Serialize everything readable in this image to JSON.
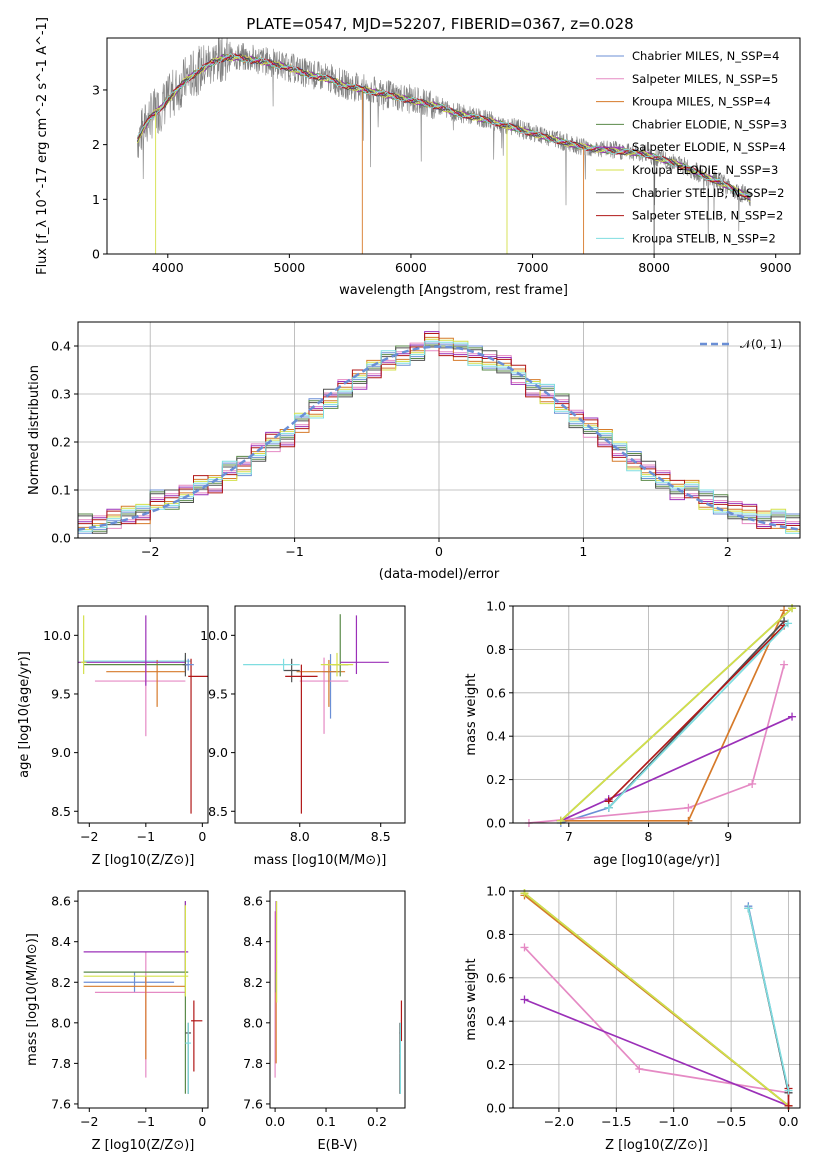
{
  "figure_title": "PLATE=0547, MJD=52207, FIBERID=0367, z=0.028",
  "colors": [
    "#6b8fd6",
    "#e58ac4",
    "#d67a2a",
    "#5a8a48",
    "#9b30b8",
    "#d4e04a",
    "#505050",
    "#b01818",
    "#7fdde0"
  ],
  "chart_data": [
    {
      "type": "line",
      "title": "PLATE=0547, MJD=52207, FIBERID=0367, z=0.028",
      "xlabel": "wavelength [Angstrom, rest frame]",
      "ylabel": "Flux [f_λ 10^-17 erg cm^-2 s^-1 A^-1]",
      "xlim": [
        3500,
        9200
      ],
      "ylim": [
        0,
        3.95
      ],
      "xticks": [
        "4000",
        "5000",
        "6000",
        "7000",
        "8000",
        "9000"
      ],
      "yticks": [
        "0",
        "1",
        "2",
        "3"
      ],
      "grid": false,
      "legend_position": "top-right",
      "data_continuum": {
        "x": [
          3750,
          3850,
          3950,
          4050,
          4150,
          4250,
          4350,
          4450,
          4550,
          4650,
          4750,
          4850,
          4950,
          5050,
          5150,
          5250,
          5350,
          5450,
          5550,
          5650,
          5750,
          5850,
          5950,
          6050,
          6150,
          6250,
          6350,
          6450,
          6550,
          6650,
          6750,
          6850,
          6950,
          7050,
          7150,
          7250,
          7350,
          7450,
          7550,
          7650,
          7750,
          7850,
          7950,
          8050,
          8150,
          8250,
          8350,
          8450,
          8550,
          8650,
          8750,
          8800
        ],
        "y": [
          2.1,
          2.5,
          2.7,
          2.95,
          3.2,
          3.35,
          3.5,
          3.6,
          3.62,
          3.58,
          3.55,
          3.5,
          3.45,
          3.38,
          3.3,
          3.25,
          3.2,
          3.1,
          3.05,
          3.0,
          2.95,
          2.9,
          2.85,
          2.8,
          2.75,
          2.7,
          2.6,
          2.55,
          2.5,
          2.45,
          2.38,
          2.32,
          2.25,
          2.18,
          2.12,
          2.06,
          2.0,
          1.96,
          1.92,
          1.9,
          1.88,
          1.86,
          1.82,
          1.75,
          1.68,
          1.6,
          1.5,
          1.4,
          1.3,
          1.2,
          1.08,
          1.0
        ]
      },
      "series_names": [
        "Chabrier MILES, N_SSP=4",
        "Salpeter MILES, N_SSP=5",
        "Kroupa MILES, N_SSP=4",
        "Chabrier ELODIE, N_SSP=3",
        "Salpeter ELODIE, N_SSP=4",
        "Kroupa ELODIE, N_SSP=3",
        "Chabrier STELIB, N_SSP=2",
        "Salpeter STELIB, N_SSP=2",
        "Kroupa STELIB, N_SSP=2"
      ]
    },
    {
      "type": "line",
      "xlabel": "(data-model)/error",
      "ylabel": "Normed distribution",
      "xlim": [
        -2.5,
        2.5
      ],
      "ylim": [
        0,
        0.45
      ],
      "xticks": [
        "−2",
        "−1",
        "0",
        "1",
        "2"
      ],
      "yticks": [
        "0.0",
        "0.1",
        "0.2",
        "0.3",
        "0.4"
      ],
      "grid": true,
      "legend_position": "top-right",
      "gaussian_label": "𝒩(0, 1)",
      "bin_edges": [
        -2.5,
        -2.4,
        -2.3,
        -2.2,
        -2.1,
        -2.0,
        -1.9,
        -1.8,
        -1.7,
        -1.6,
        -1.5,
        -1.4,
        -1.3,
        -1.2,
        -1.1,
        -1.0,
        -0.9,
        -0.8,
        -0.7,
        -0.6,
        -0.5,
        -0.4,
        -0.3,
        -0.2,
        -0.1,
        0.0,
        0.1,
        0.2,
        0.3,
        0.4,
        0.5,
        0.6,
        0.7,
        0.8,
        0.9,
        1.0,
        1.1,
        1.2,
        1.3,
        1.4,
        1.5,
        1.6,
        1.7,
        1.8,
        1.9,
        2.0,
        2.1,
        2.2,
        2.3,
        2.4,
        2.5
      ],
      "hist_values": [
        0.03,
        0.03,
        0.04,
        0.05,
        0.05,
        0.08,
        0.08,
        0.09,
        0.11,
        0.11,
        0.14,
        0.15,
        0.18,
        0.2,
        0.21,
        0.24,
        0.27,
        0.29,
        0.31,
        0.33,
        0.35,
        0.37,
        0.38,
        0.39,
        0.41,
        0.4,
        0.39,
        0.38,
        0.37,
        0.36,
        0.34,
        0.31,
        0.3,
        0.28,
        0.25,
        0.23,
        0.21,
        0.18,
        0.16,
        0.14,
        0.12,
        0.1,
        0.1,
        0.08,
        0.07,
        0.06,
        0.05,
        0.04,
        0.04,
        0.03
      ]
    },
    {
      "type": "scatter",
      "xlabel": "Z [log10(Z/Z⊙)]",
      "ylabel": "age [log10(age/yr)]",
      "xlim": [
        -2.2,
        0.1
      ],
      "ylim": [
        8.4,
        10.25
      ],
      "xticks": [
        "−2",
        "−1",
        "0"
      ],
      "yticks": [
        "8.5",
        "9.0",
        "9.5",
        "10.0"
      ],
      "crosses": [
        {
          "x": -0.3,
          "xerr": [
            1.8,
            0.1
          ],
          "y": 9.78,
          "yerr": [
            0.08,
            0.05
          ],
          "s": 8
        },
        {
          "x": -1.0,
          "xerr": [
            0.9,
            0.7
          ],
          "y": 9.61,
          "yerr": [
            0.47,
            0.17
          ],
          "s": 1
        },
        {
          "x": -0.8,
          "xerr": [
            0.9,
            0.5
          ],
          "y": 9.69,
          "yerr": [
            0.3,
            0.1
          ],
          "s": 2
        },
        {
          "x": -0.3,
          "xerr": [
            1.8,
            0.05
          ],
          "y": 9.75,
          "yerr": [
            0.05,
            0.05
          ],
          "s": 3
        },
        {
          "x": -1.0,
          "xerr": [
            1.2,
            0.7
          ],
          "y": 9.77,
          "yerr": [
            0.2,
            0.4
          ],
          "s": 4
        },
        {
          "x": -2.1,
          "xerr": [
            0.05,
            0.05
          ],
          "y": 9.77,
          "yerr": [
            0.1,
            0.4
          ],
          "s": 5
        },
        {
          "x": -0.3,
          "xerr": [
            0.05,
            0.05
          ],
          "y": 9.75,
          "yerr": [
            0.1,
            0.1
          ],
          "s": 6
        },
        {
          "x": -0.2,
          "xerr": [
            0.05,
            0.3
          ],
          "y": 9.65,
          "yerr": [
            1.17,
            0.15
          ],
          "s": 7
        },
        {
          "x": -0.25,
          "xerr": [
            0.05,
            0.1
          ],
          "y": 9.75,
          "yerr": [
            0.05,
            0.05
          ],
          "s": 0
        }
      ]
    },
    {
      "type": "scatter",
      "xlabel": "mass [log10(M/M⊙)]",
      "ylabel": "",
      "xlim": [
        7.6,
        8.65
      ],
      "ylim": [
        8.4,
        10.25
      ],
      "xticks": [
        "8.0",
        "8.5"
      ],
      "yticks": [
        "8.5",
        "9.0",
        "9.5",
        "10.0"
      ],
      "crosses": [
        {
          "x": 8.19,
          "xerr": [
            0.05,
            0.05
          ],
          "y": 9.69,
          "yerr": [
            0.4,
            0.15
          ],
          "s": 0
        },
        {
          "x": 8.15,
          "xerr": [
            0.15,
            0.15
          ],
          "y": 9.61,
          "yerr": [
            0.45,
            0.2
          ],
          "s": 1
        },
        {
          "x": 8.18,
          "xerr": [
            0.2,
            0.1
          ],
          "y": 9.69,
          "yerr": [
            0.3,
            0.1
          ],
          "s": 2
        },
        {
          "x": 8.25,
          "xerr": [
            0.05,
            0.05
          ],
          "y": 9.75,
          "yerr": [
            0.1,
            0.43
          ],
          "s": 3
        },
        {
          "x": 8.35,
          "xerr": [
            0.1,
            0.2
          ],
          "y": 9.77,
          "yerr": [
            0.1,
            0.4
          ],
          "s": 4
        },
        {
          "x": 8.23,
          "xerr": [
            0.1,
            0.1
          ],
          "y": 9.75,
          "yerr": [
            0.1,
            0.1
          ],
          "s": 5
        },
        {
          "x": 7.95,
          "xerr": [
            0.05,
            0.05
          ],
          "y": 9.7,
          "yerr": [
            0.1,
            0.1
          ],
          "s": 6
        },
        {
          "x": 8.01,
          "xerr": [
            0.1,
            0.1
          ],
          "y": 9.65,
          "yerr": [
            1.17,
            0.1
          ],
          "s": 7
        },
        {
          "x": 7.9,
          "xerr": [
            0.25,
            0.1
          ],
          "y": 9.75,
          "yerr": [
            0.05,
            0.05
          ],
          "s": 8
        }
      ]
    },
    {
      "type": "line",
      "xlabel": "age [log10(age/yr)]",
      "ylabel": "mass weight",
      "xlim": [
        6.3,
        9.9
      ],
      "ylim": [
        0,
        1
      ],
      "xticks": [
        "7",
        "8",
        "9"
      ],
      "yticks": [
        "0.0",
        "0.2",
        "0.4",
        "0.6",
        "0.8",
        "1.0"
      ],
      "grid": true,
      "series": [
        {
          "s": 0,
          "x": [
            6.9,
            7.5,
            9.7
          ],
          "y": [
            0.0,
            0.07,
            0.93
          ]
        },
        {
          "s": 1,
          "x": [
            6.5,
            8.5,
            9.3,
            9.7
          ],
          "y": [
            0.0,
            0.07,
            0.18,
            0.73
          ]
        },
        {
          "s": 2,
          "x": [
            6.9,
            8.5,
            9.7
          ],
          "y": [
            0.01,
            0.01,
            0.98
          ]
        },
        {
          "s": 3,
          "x": [
            6.9,
            9.8
          ],
          "y": [
            0.01,
            0.99
          ]
        },
        {
          "s": 4,
          "x": [
            6.9,
            7.5,
            9.8
          ],
          "y": [
            0.01,
            0.11,
            0.49
          ]
        },
        {
          "s": 5,
          "x": [
            6.9,
            9.8
          ],
          "y": [
            0.01,
            0.99
          ]
        },
        {
          "s": 6,
          "x": [
            7.5,
            9.7
          ],
          "y": [
            0.07,
            0.93
          ]
        },
        {
          "s": 7,
          "x": [
            7.5,
            9.7
          ],
          "y": [
            0.1,
            0.91
          ]
        },
        {
          "s": 8,
          "x": [
            7.5,
            9.75
          ],
          "y": [
            0.07,
            0.92
          ]
        }
      ]
    },
    {
      "type": "scatter",
      "xlabel": "Z [log10(Z/Z⊙)]",
      "ylabel": "mass [log10(M/M⊙)]",
      "xlim": [
        -2.2,
        0.1
      ],
      "ylim": [
        7.58,
        8.65
      ],
      "xticks": [
        "−2",
        "−1",
        "0"
      ],
      "yticks": [
        "7.6",
        "7.8",
        "8.0",
        "8.2",
        "8.4",
        "8.6"
      ],
      "crosses": [
        {
          "x": -1.2,
          "xerr": [
            0.9,
            0.7
          ],
          "y": 8.2,
          "yerr": [
            0.05,
            0.05
          ],
          "s": 0
        },
        {
          "x": -1.0,
          "xerr": [
            0.9,
            0.7
          ],
          "y": 8.15,
          "yerr": [
            0.42,
            0.2
          ],
          "s": 1
        },
        {
          "x": -1.0,
          "xerr": [
            1.1,
            0.7
          ],
          "y": 8.18,
          "yerr": [
            0.36,
            0.05
          ],
          "s": 2
        },
        {
          "x": -0.3,
          "xerr": [
            1.8,
            0.05
          ],
          "y": 8.25,
          "yerr": [
            0.6,
            0.35
          ],
          "s": 3
        },
        {
          "x": -0.3,
          "xerr": [
            1.8,
            0.05
          ],
          "y": 8.35,
          "yerr": [
            0.1,
            0.25
          ],
          "s": 4
        },
        {
          "x": -0.3,
          "xerr": [
            1.8,
            0.05
          ],
          "y": 8.23,
          "yerr": [
            0.1,
            0.35
          ],
          "s": 5
        },
        {
          "x": -0.25,
          "xerr": [
            0.05,
            0.05
          ],
          "y": 7.95,
          "yerr": [
            0.3,
            0.05
          ],
          "s": 6
        },
        {
          "x": -0.15,
          "xerr": [
            0.05,
            0.15
          ],
          "y": 8.01,
          "yerr": [
            0.25,
            0.1
          ],
          "s": 7
        },
        {
          "x": -0.25,
          "xerr": [
            0.05,
            0.05
          ],
          "y": 7.9,
          "yerr": [
            0.25,
            0.1
          ],
          "s": 8
        }
      ]
    },
    {
      "type": "scatter",
      "xlabel": "E(B-V)",
      "ylabel": "",
      "xlim": [
        -0.01,
        0.255
      ],
      "ylim": [
        7.58,
        8.65
      ],
      "xticks": [
        "0.0",
        "0.1",
        "0.2"
      ],
      "yticks": [
        "7.6",
        "7.8",
        "8.0",
        "8.2",
        "8.4",
        "8.6"
      ],
      "crosses": [
        {
          "x": 0.0,
          "y": 8.2,
          "yerr": [
            0.4,
            0.3
          ],
          "s": 0
        },
        {
          "x": 0.0,
          "y": 8.15,
          "yerr": [
            0.42,
            0.4
          ],
          "s": 1
        },
        {
          "x": 0.002,
          "y": 8.15,
          "yerr": [
            0.35,
            0.05
          ],
          "s": 2
        },
        {
          "x": 0.002,
          "y": 8.25,
          "yerr": [
            0.1,
            0.35
          ],
          "s": 3
        },
        {
          "x": 0.002,
          "y": 8.35,
          "yerr": [
            0.1,
            0.25
          ],
          "s": 4
        },
        {
          "x": 0.003,
          "y": 8.3,
          "yerr": [
            0.2,
            0.3
          ],
          "s": 5
        },
        {
          "x": 0.245,
          "y": 7.95,
          "yerr": [
            0.3,
            0.05
          ],
          "s": 6
        },
        {
          "x": 0.248,
          "y": 8.01,
          "yerr": [
            0.1,
            0.1
          ],
          "s": 7
        },
        {
          "x": 0.246,
          "y": 7.85,
          "yerr": [
            0.2,
            0.15
          ],
          "s": 8
        }
      ]
    },
    {
      "type": "line",
      "xlabel": "Z [log10(Z/Z⊙)]",
      "ylabel": "mass weight",
      "xlim": [
        -2.4,
        0.1
      ],
      "ylim": [
        0,
        1
      ],
      "xticks": [
        "−2.0",
        "−1.5",
        "−1.0",
        "−0.5",
        "0.0"
      ],
      "yticks": [
        "0.0",
        "0.2",
        "0.4",
        "0.6",
        "0.8",
        "1.0"
      ],
      "grid": true,
      "series": [
        {
          "s": 0,
          "x": [
            -0.35,
            0.0
          ],
          "y": [
            0.93,
            0.07
          ]
        },
        {
          "s": 1,
          "x": [
            -2.3,
            -1.3,
            0.0
          ],
          "y": [
            0.74,
            0.18,
            0.07
          ]
        },
        {
          "s": 2,
          "x": [
            -2.3,
            0.0
          ],
          "y": [
            0.98,
            0.01
          ]
        },
        {
          "s": 3,
          "x": [
            -2.3,
            0.0
          ],
          "y": [
            0.99,
            0.01
          ]
        },
        {
          "s": 4,
          "x": [
            -2.3,
            0.0
          ],
          "y": [
            0.5,
            0.01
          ]
        },
        {
          "s": 5,
          "x": [
            -2.3,
            0.0
          ],
          "y": [
            0.99,
            0.01
          ]
        },
        {
          "s": 6,
          "x": [
            -0.35,
            0.0
          ],
          "y": [
            0.92,
            0.07
          ]
        },
        {
          "s": 7,
          "x": [
            0.0,
            0.0
          ],
          "y": [
            0.09,
            0.01
          ]
        },
        {
          "s": 8,
          "x": [
            -0.35,
            0.0
          ],
          "y": [
            0.92,
            0.08
          ]
        }
      ]
    }
  ]
}
